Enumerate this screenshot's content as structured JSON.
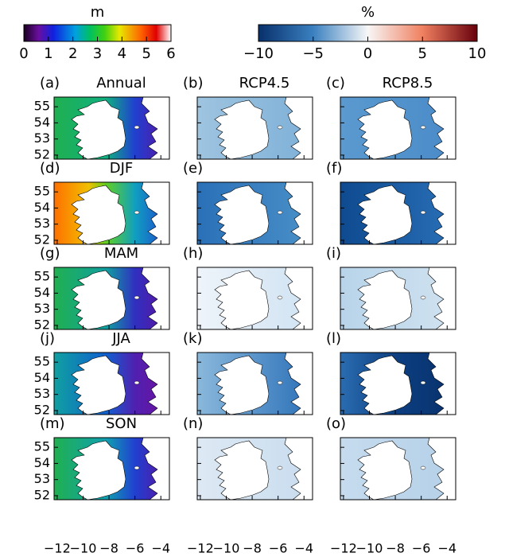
{
  "colorbars": [
    {
      "label": "m",
      "lim": [
        0,
        6
      ],
      "ticks": [
        0,
        1,
        2,
        3,
        4,
        5,
        6
      ]
    },
    {
      "label": "%",
      "lim": [
        -10,
        10
      ],
      "ticks": [
        {
          "value": -10,
          "label": "−10"
        },
        {
          "value": -5,
          "label": "−5"
        },
        0,
        5,
        10
      ]
    }
  ],
  "map_axes": {
    "xlim": [
      -12.24,
      -3.34
    ],
    "ylim": [
      51.75,
      55.6
    ],
    "xticks": [
      {
        "value": -12,
        "label": "−12"
      },
      {
        "value": -10,
        "label": "−10"
      },
      {
        "value": -8,
        "label": "−8"
      },
      {
        "value": -6,
        "label": "−6"
      },
      {
        "value": -4,
        "label": "−4"
      }
    ],
    "yticks": [
      52,
      53,
      54,
      55
    ]
  },
  "panels": [
    {
      "label": "(a)",
      "title": "Annual"
    },
    {
      "label": "(b)",
      "title": "RCP4.5"
    },
    {
      "label": "(c)",
      "title": "RCP8.5"
    },
    {
      "label": "(d)",
      "title": "DJF"
    },
    {
      "label": "(e)"
    },
    {
      "label": "(f)"
    },
    {
      "label": "(g)",
      "title": "MAM"
    },
    {
      "label": "(h)"
    },
    {
      "label": "(i)"
    },
    {
      "label": "(j)",
      "title": "JJA"
    },
    {
      "label": "(k)"
    },
    {
      "label": "(l)"
    },
    {
      "label": "(m)",
      "title": "SON"
    },
    {
      "label": "(n)"
    },
    {
      "label": "(o)"
    }
  ]
}
